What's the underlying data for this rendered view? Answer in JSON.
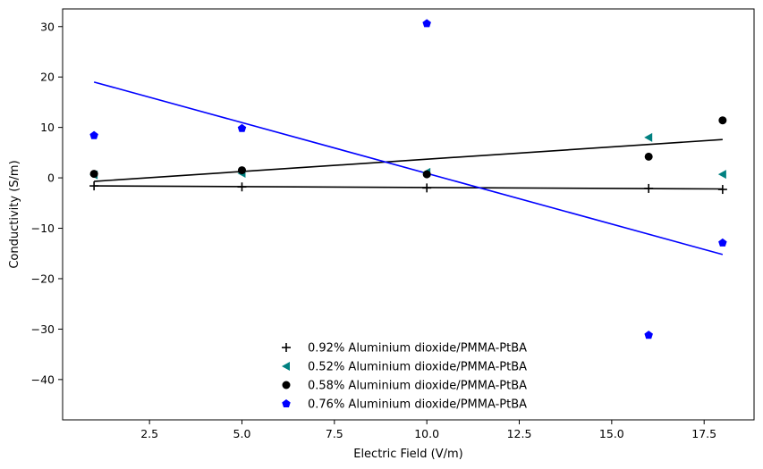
{
  "chart_data": {
    "type": "scatter",
    "xlabel": "Electric Field (V/m)",
    "ylabel": "Conductivity (S/m)",
    "xlim": [
      0.15,
      18.85
    ],
    "ylim": [
      -48,
      33.5
    ],
    "xticks": [
      2.5,
      5.0,
      7.5,
      10.0,
      12.5,
      15.0,
      17.5
    ],
    "xtick_labels": [
      "2.5",
      "5.0",
      "7.5",
      "10.0",
      "12.5",
      "15.0",
      "17.5"
    ],
    "yticks": [
      -40,
      -30,
      -20,
      -10,
      0,
      10,
      20,
      30
    ],
    "ytick_labels": [
      "−40",
      "−30",
      "−20",
      "−10",
      "0",
      "10",
      "20",
      "30"
    ],
    "grid": false,
    "legend_position": "lower center",
    "series": [
      {
        "name": "0.92% Aluminium dioxide/PMMA-PtBA",
        "marker": "plus",
        "color": "#000000",
        "x": [
          1,
          5,
          10,
          16,
          18
        ],
        "y": [
          -1.6,
          -1.8,
          -2.0,
          -2.1,
          -2.3
        ],
        "fit": {
          "x": [
            1,
            18
          ],
          "y": [
            -1.6,
            -2.2
          ],
          "color": "#000000"
        }
      },
      {
        "name": "0.52% Aluminium dioxide/PMMA-PtBA",
        "marker": "triangle-left",
        "color": "#008080",
        "x": [
          1,
          5,
          10,
          16,
          18
        ],
        "y": [
          0.6,
          0.9,
          1.1,
          8.0,
          0.7
        ],
        "fit": null
      },
      {
        "name": "0.58% Aluminium dioxide/PMMA-PtBA",
        "marker": "circle",
        "color": "#000000",
        "x": [
          1,
          5,
          10,
          16,
          18
        ],
        "y": [
          0.8,
          1.5,
          0.7,
          4.2,
          11.4
        ],
        "fit": {
          "x": [
            1,
            18
          ],
          "y": [
            -0.7,
            7.6
          ],
          "color": "#000000"
        }
      },
      {
        "name": "0.76% Aluminium dioxide/PMMA-PtBA",
        "marker": "pentagon",
        "color": "#0000ff",
        "x": [
          1,
          5,
          10,
          16,
          18
        ],
        "y": [
          8.4,
          9.8,
          30.6,
          -31.2,
          -12.9
        ],
        "fit": {
          "x": [
            1,
            18
          ],
          "y": [
            19.0,
            -15.2
          ],
          "color": "#0000ff"
        }
      }
    ]
  }
}
